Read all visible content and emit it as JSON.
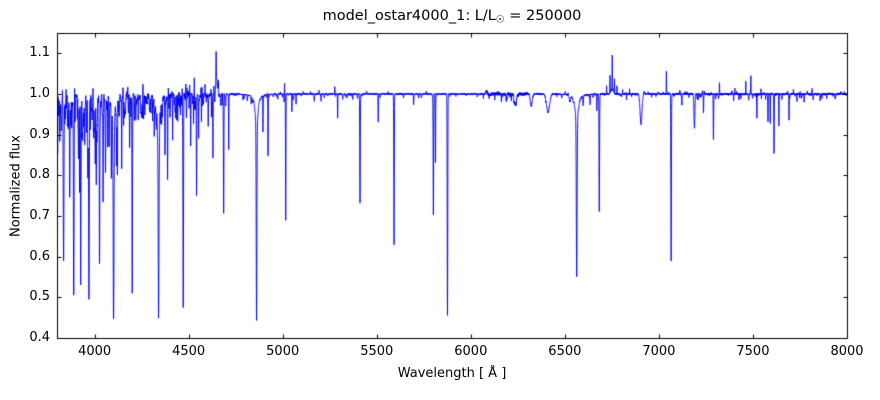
{
  "chart_data": {
    "type": "line",
    "title": "model_ostar4000_1: L/L☉ = 250000",
    "title_prefix": "model_ostar4000_1: L/L",
    "title_odot": "☉",
    "title_suffix": " = 250000",
    "xlabel": "Wavelength [ Å ]",
    "ylabel": "Normalized flux",
    "xlim": [
      3800,
      8000
    ],
    "ylim": [
      0.4,
      1.15
    ],
    "x_ticks": [
      "4000",
      "4500",
      "5000",
      "5500",
      "6000",
      "6500",
      "7000",
      "7500",
      "8000"
    ],
    "y_ticks": [
      "0.4",
      "0.5",
      "0.6",
      "0.7",
      "0.8",
      "0.9",
      "1.0",
      "1.1"
    ],
    "grid": false,
    "legend": null,
    "line_color": "#0000ee",
    "axis_color": "#000000",
    "background_color": "#ffffff",
    "continuum": 1.0,
    "absorption_lines": [
      [
        3800,
        0.68,
        1.2,
        0
      ],
      [
        3815,
        0.9,
        1.1,
        0
      ],
      [
        3835,
        0.6,
        1.7,
        0
      ],
      [
        3856,
        0.92,
        1.0,
        0
      ],
      [
        3868,
        0.88,
        1.0,
        0
      ],
      [
        3878,
        0.93,
        0.9,
        0
      ],
      [
        3889,
        0.52,
        1.7,
        0
      ],
      [
        3912,
        0.94,
        0.9,
        0
      ],
      [
        3920,
        0.8,
        0.9,
        0
      ],
      [
        3926,
        0.57,
        1.3,
        0
      ],
      [
        3948,
        0.93,
        0.9,
        0
      ],
      [
        3964,
        0.82,
        1.0,
        0
      ],
      [
        3970,
        0.55,
        1.7,
        0
      ],
      [
        3995,
        0.9,
        0.9,
        0
      ],
      [
        4009,
        0.86,
        1.0,
        0
      ],
      [
        4026,
        0.56,
        1.4,
        0
      ],
      [
        4045,
        0.76,
        1.0,
        0
      ],
      [
        4058,
        0.92,
        0.9,
        0
      ],
      [
        4070,
        0.87,
        0.9,
        0
      ],
      [
        4077,
        0.89,
        0.9,
        0
      ],
      [
        4089,
        0.82,
        1.0,
        0
      ],
      [
        4101,
        0.55,
        1.9,
        1
      ],
      [
        4116,
        0.88,
        0.9,
        0
      ],
      [
        4121,
        0.84,
        0.9,
        0
      ],
      [
        4144,
        0.84,
        1.0,
        0
      ],
      [
        4154,
        0.93,
        0.9,
        0
      ],
      [
        4186,
        0.92,
        0.9,
        0
      ],
      [
        4200,
        0.51,
        1.3,
        0
      ],
      [
        4233,
        0.94,
        0.9,
        0
      ],
      [
        4267,
        0.93,
        0.9,
        0
      ],
      [
        4317,
        0.94,
        0.9,
        0
      ],
      [
        4340,
        0.55,
        1.9,
        1
      ],
      [
        4374,
        0.86,
        1.0,
        0
      ],
      [
        4388,
        0.83,
        1.0,
        0
      ],
      [
        4415,
        0.91,
        0.9,
        0
      ],
      [
        4437,
        0.94,
        0.9,
        0
      ],
      [
        4471,
        0.51,
        1.4,
        0
      ],
      [
        4511,
        0.9,
        0.9,
        0
      ],
      [
        4526,
        0.93,
        0.8,
        0
      ],
      [
        4542,
        0.77,
        1.2,
        0
      ],
      [
        4553,
        0.9,
        0.8,
        0
      ],
      [
        4568,
        0.93,
        0.8,
        0
      ],
      [
        4604,
        0.92,
        0.8,
        0
      ],
      [
        4621,
        0.93,
        0.8,
        0
      ],
      [
        4629,
        0.84,
        0.9,
        0
      ],
      [
        4686,
        0.715,
        1.1,
        0
      ],
      [
        4713,
        0.86,
        0.9,
        0
      ],
      [
        4789,
        0.985,
        0.8,
        0
      ],
      [
        4861,
        0.535,
        1.7,
        1
      ],
      [
        4895,
        0.91,
        0.9,
        0
      ],
      [
        4922,
        0.85,
        1.0,
        0
      ],
      [
        5016,
        0.69,
        1.0,
        0
      ],
      [
        5049,
        0.955,
        0.8,
        0
      ],
      [
        5071,
        0.975,
        0.8,
        0
      ],
      [
        5292,
        0.94,
        0.9,
        0
      ],
      [
        5411,
        0.73,
        1.4,
        0
      ],
      [
        5508,
        0.93,
        1.0,
        0
      ],
      [
        5592,
        0.63,
        1.3,
        0
      ],
      [
        5696,
        0.975,
        1.0,
        0
      ],
      [
        5801,
        0.7,
        1.3,
        0
      ],
      [
        5812,
        0.83,
        1.0,
        0
      ],
      [
        5876,
        0.455,
        1.4,
        0
      ],
      [
        6236,
        0.975,
        6,
        0
      ],
      [
        6321,
        0.97,
        5,
        0
      ],
      [
        6411,
        0.955,
        8,
        0
      ],
      [
        6527,
        0.985,
        3,
        0
      ],
      [
        6563,
        0.625,
        2.0,
        1
      ],
      [
        6597,
        0.975,
        1.5,
        0
      ],
      [
        6634,
        0.975,
        1.2,
        0
      ],
      [
        6670,
        0.96,
        1.0,
        0
      ],
      [
        6683,
        0.71,
        1.4,
        0
      ],
      [
        6828,
        0.985,
        1.0,
        0
      ],
      [
        6905,
        0.925,
        5,
        0
      ],
      [
        7065,
        0.585,
        1.4,
        0
      ],
      [
        7122,
        0.975,
        1.5,
        0
      ],
      [
        7189,
        0.915,
        2.5,
        0
      ],
      [
        7237,
        0.955,
        1.1,
        0
      ],
      [
        7290,
        0.89,
        1.1,
        0
      ],
      [
        7521,
        0.94,
        0.9,
        0
      ],
      [
        7580,
        0.93,
        0.9,
        0
      ],
      [
        7592,
        0.93,
        0.9,
        0
      ],
      [
        7612,
        0.865,
        1.0,
        0
      ],
      [
        7638,
        0.92,
        0.9,
        0
      ],
      [
        7692,
        0.935,
        0.9,
        0
      ],
      [
        7734,
        0.98,
        0.8,
        0
      ],
      [
        7772,
        0.98,
        0.9,
        0
      ],
      [
        7820,
        0.985,
        0.8,
        0
      ],
      [
        7857,
        0.985,
        0.8,
        0
      ],
      [
        7937,
        0.99,
        0.8,
        0
      ]
    ],
    "emission_lines": [
      [
        4315,
        1.02,
        0.7
      ],
      [
        4485,
        1.03,
        0.7
      ],
      [
        4505,
        1.02,
        0.7
      ],
      [
        4530,
        1.04,
        0.7
      ],
      [
        4587,
        1.025,
        0.7
      ],
      [
        4634,
        1.03,
        0.9
      ],
      [
        4646,
        1.088,
        1.1
      ],
      [
        4646,
        1.022,
        8
      ],
      [
        4658,
        1.025,
        0.9
      ],
      [
        4920,
        1.015,
        0.6
      ],
      [
        5010,
        1.025,
        0.6
      ],
      [
        5277,
        1.02,
        0.6
      ],
      [
        6722,
        1.02,
        0.7
      ],
      [
        6740,
        1.045,
        0.7
      ],
      [
        6752,
        1.082,
        0.9
      ],
      [
        6752,
        1.015,
        6
      ],
      [
        6764,
        1.035,
        0.7
      ],
      [
        6777,
        1.02,
        0.7
      ],
      [
        6807,
        1.012,
        0.7
      ],
      [
        6844,
        1.012,
        0.7
      ],
      [
        7040,
        1.055,
        0.8
      ],
      [
        7322,
        1.03,
        0.7
      ],
      [
        7404,
        1.015,
        0.6
      ],
      [
        7462,
        1.03,
        0.6
      ],
      [
        7489,
        1.045,
        0.6
      ],
      [
        7543,
        1.02,
        0.6
      ],
      [
        7715,
        1.012,
        0.6
      ],
      [
        7750,
        1.012,
        0.6
      ],
      [
        7814,
        1.012,
        0.6
      ],
      [
        7894,
        1.01,
        0.6
      ]
    ],
    "noise_bands": [
      [
        3800,
        4060,
        2.2,
        0.09,
        0.05
      ],
      [
        4060,
        4500,
        3.2,
        0.065,
        0.08
      ],
      [
        4500,
        4700,
        4.5,
        0.04,
        0.15
      ],
      [
        4700,
        5400,
        16,
        0.02,
        0.2
      ],
      [
        5400,
        6080,
        26,
        0.012,
        0.2
      ],
      [
        6080,
        6300,
        8,
        0.018,
        0.3
      ],
      [
        6300,
        7100,
        20,
        0.012,
        0.3
      ],
      [
        7100,
        8000,
        11,
        0.016,
        0.35
      ]
    ],
    "jitter_bands": [
      [
        3800,
        4500,
        0.0045
      ],
      [
        4500,
        4700,
        0.003
      ],
      [
        4700,
        6080,
        0.0012
      ],
      [
        6080,
        6300,
        0.0035
      ],
      [
        6300,
        7100,
        0.0015
      ],
      [
        7100,
        8000,
        0.002
      ]
    ]
  }
}
